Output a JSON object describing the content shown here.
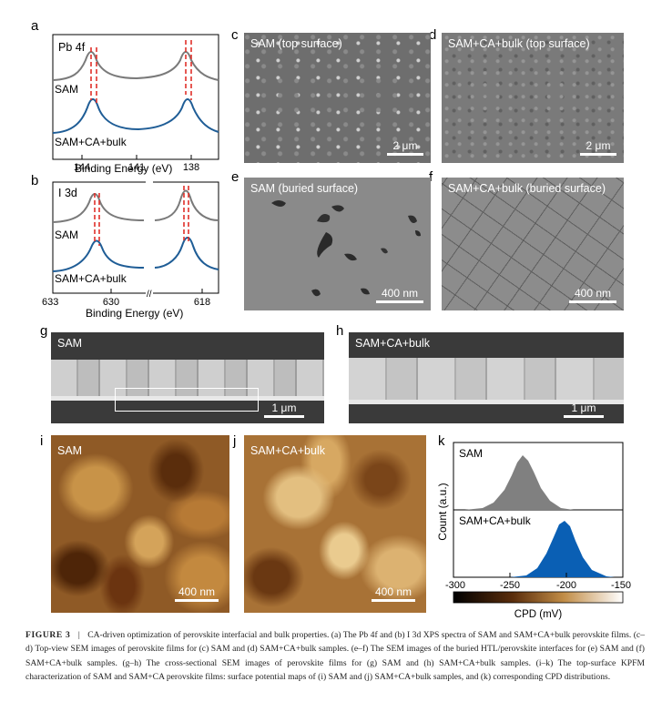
{
  "panels": {
    "a": {
      "label": "a",
      "element": "Pb 4f",
      "series": [
        "SAM",
        "SAM+CA+bulk"
      ],
      "ticks": [
        "144",
        "141",
        "138"
      ],
      "xlabel": "Binding Energy (eV)"
    },
    "b": {
      "label": "b",
      "element": "I 3d",
      "series": [
        "SAM",
        "SAM+CA+bulk"
      ],
      "ticks": [
        "633",
        "630",
        "618"
      ],
      "xlabel": "Binding Energy (eV)"
    },
    "c": {
      "label": "c",
      "title": "SAM (top surface)",
      "scale": "2 μm"
    },
    "d": {
      "label": "d",
      "title": "SAM+CA+bulk (top surface)",
      "scale": "2 μm"
    },
    "e": {
      "label": "e",
      "title": "SAM (buried surface)",
      "scale": "400 nm"
    },
    "f": {
      "label": "f",
      "title": "SAM+CA+bulk (buried surface)",
      "scale": "400 nm"
    },
    "g": {
      "label": "g",
      "title": "SAM",
      "scale": "1 μm"
    },
    "h": {
      "label": "h",
      "title": "SAM+CA+bulk",
      "scale": "1 μm"
    },
    "i": {
      "label": "i",
      "title": "SAM",
      "scale": "400 nm"
    },
    "j": {
      "label": "j",
      "title": "SAM+CA+bulk",
      "scale": "400 nm"
    },
    "k": {
      "label": "k",
      "series": [
        "SAM",
        "SAM+CA+bulk"
      ],
      "ylabel": "Count (a.u.)",
      "ticks": [
        "-300",
        "-250",
        "-200",
        "-150"
      ],
      "colorbar_label": "CPD (mV)"
    }
  },
  "chart_data": [
    {
      "type": "line",
      "panel": "a",
      "series": [
        {
          "name": "SAM",
          "peaks_eV": [
            143.0,
            138.2
          ]
        },
        {
          "name": "SAM+CA+bulk",
          "peaks_eV": [
            142.8,
            138.0
          ]
        }
      ],
      "xlabel": "Binding Energy (eV)",
      "xlim": [
        145.5,
        136.5
      ],
      "xticks": [
        144,
        141,
        138
      ]
    },
    {
      "type": "line",
      "panel": "b",
      "series": [
        {
          "name": "SAM",
          "peaks_eV": [
            630.9,
            619.4
          ]
        },
        {
          "name": "SAM+CA+bulk",
          "peaks_eV": [
            630.7,
            619.2
          ]
        }
      ],
      "xlabel": "Binding Energy (eV)",
      "xticks": [
        633,
        630,
        618
      ]
    },
    {
      "type": "area",
      "panel": "k",
      "series": [
        {
          "name": "SAM",
          "center_mV": -235,
          "color": "#808080"
        },
        {
          "name": "SAM+CA+bulk",
          "center_mV": -208,
          "color": "#0a5fb4"
        }
      ],
      "ylabel": "Count (a.u.)",
      "xlabel": "CPD (mV)",
      "xlim": [
        -300,
        -150
      ],
      "xticks": [
        -300,
        -250,
        -200,
        -150
      ]
    }
  ],
  "caption": {
    "figure": "FIGURE 3",
    "sep": "|",
    "text": "CA-driven optimization of perovskite interfacial and bulk properties. (a) The Pb 4f and (b) I 3d XPS spectra of SAM and SAM+CA+bulk perovskite films. (c–d) Top-view SEM images of perovskite films for (c) SAM and (d) SAM+CA+bulk samples. (e–f) The SEM images of the buried HTL/perovskite interfaces for (e) SAM and (f) SAM+CA+bulk samples. (g–h) The cross-sectional SEM images of perovskite films for (g) SAM and (h) SAM+CA+bulk samples. (i–k) The top-surface KPFM characterization of SAM and SAM+CA perovskite films: surface potential maps of (i) SAM and (j) SAM+CA+bulk samples, and (k) corresponding CPD distributions."
  },
  "colors": {
    "sam_line": "#7a7a7a",
    "bulk_line": "#1f5d96",
    "marker": "#e0302a",
    "k_sam": "#808080",
    "k_bulk": "#0a5fb4"
  }
}
